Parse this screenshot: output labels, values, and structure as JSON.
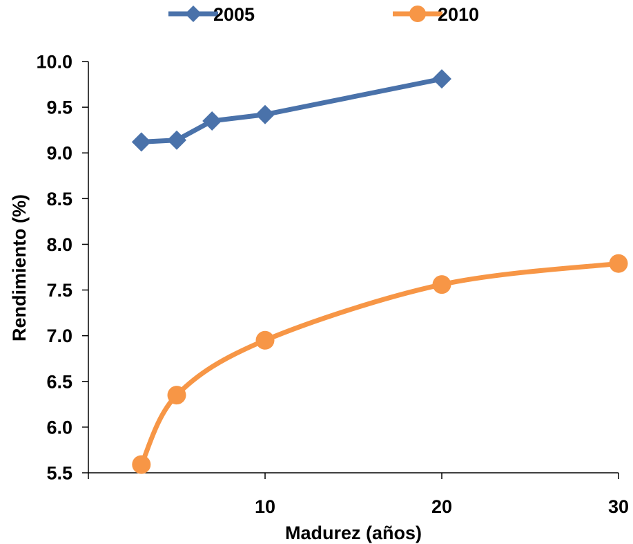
{
  "chart_data": {
    "type": "line",
    "xlabel": "Madurez (años)",
    "ylabel": "Rendimiento (%)",
    "xlim": [
      0,
      30
    ],
    "ylim": [
      5.5,
      10.0
    ],
    "x_ticks": [
      10,
      20,
      30
    ],
    "x_tick_labels": [
      "10",
      "20",
      "30"
    ],
    "y_ticks": [
      5.5,
      6.0,
      6.5,
      7.0,
      7.5,
      8.0,
      8.5,
      9.0,
      9.5,
      10.0
    ],
    "y_tick_labels": [
      "5.5",
      "6.0",
      "6.5",
      "7.0",
      "7.5",
      "8.0",
      "8.5",
      "9.0",
      "9.5",
      "10.0"
    ],
    "grid": false,
    "legend_position": "top",
    "series": [
      {
        "name": "2005",
        "color": "#4a72aa",
        "marker": "diamond",
        "smooth": false,
        "points": [
          [
            3,
            9.12
          ],
          [
            5,
            9.14
          ],
          [
            7,
            9.35
          ],
          [
            10,
            9.42
          ],
          [
            20,
            9.81
          ]
        ]
      },
      {
        "name": "2010",
        "color": "#f79646",
        "marker": "circle",
        "smooth": true,
        "points": [
          [
            3,
            5.59
          ],
          [
            5,
            6.35
          ],
          [
            10,
            6.95
          ],
          [
            20,
            7.56
          ],
          [
            30,
            7.79
          ]
        ]
      }
    ]
  }
}
